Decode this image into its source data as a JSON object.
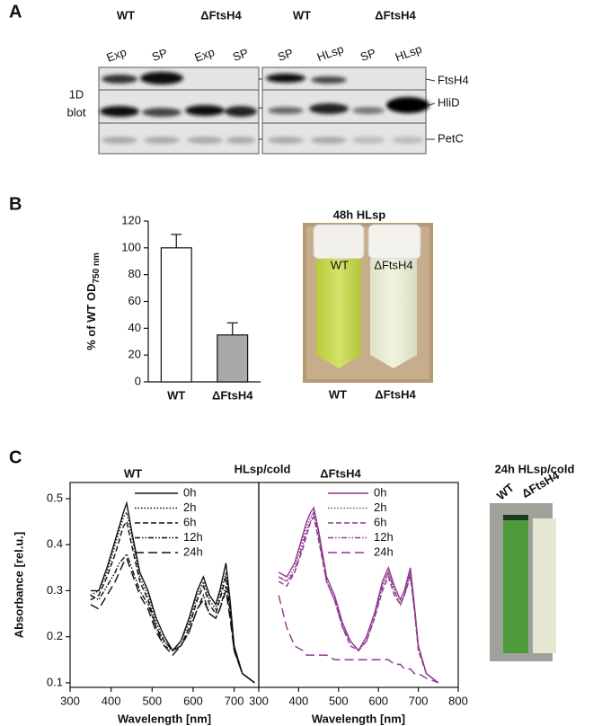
{
  "panel_labels": [
    "A",
    "B",
    "C"
  ],
  "blot": {
    "groups": [
      "WT",
      "ΔFtsH4",
      "WT",
      "ΔFtsH4"
    ],
    "lanes": [
      "Exp",
      "SP",
      "Exp",
      "SP",
      "SP",
      "HLsp",
      "SP",
      "HLsp"
    ],
    "side_label": [
      "1D",
      "blot"
    ],
    "proteins": [
      "FtsH4",
      "HliD",
      "PetC"
    ]
  },
  "photo_b": {
    "labels": [
      "WT",
      "ΔFtsH4"
    ]
  },
  "panel_c_title": "HLsp/cold",
  "photo_c": {
    "title": "24h HLsp/cold",
    "labels": [
      "WT",
      "ΔFtsH4"
    ]
  },
  "chart_data": [
    {
      "type": "bar",
      "title": "48h HLsp",
      "ylabel": "% of  WT OD",
      "ylabel_sub": "750 nm",
      "categories": [
        "WT",
        "ΔFtsH4"
      ],
      "values": [
        100,
        35
      ],
      "errors": [
        10,
        9
      ],
      "colors": [
        "#ffffff",
        "#a9a9a9"
      ],
      "ylim": [
        0,
        120
      ],
      "yticks": [
        0,
        20,
        40,
        60,
        80,
        100,
        120
      ]
    },
    {
      "type": "line",
      "title": "WT",
      "xlabel": "Wavelength [nm]",
      "ylabel": "Absorbance [rel.u.]",
      "x": [
        350,
        370,
        390,
        410,
        420,
        430,
        438,
        450,
        470,
        490,
        510,
        530,
        550,
        570,
        590,
        610,
        625,
        640,
        655,
        665,
        680,
        690,
        700,
        720,
        750
      ],
      "xlim": [
        300,
        760
      ],
      "xticks": [
        300,
        400,
        500,
        600,
        700
      ],
      "ylim": [
        0.09,
        0.535
      ],
      "yticks": [
        0.1,
        0.2,
        0.3,
        0.4,
        0.5
      ],
      "series": [
        {
          "name": "0h",
          "color": "#111111",
          "dash": "none",
          "values": [
            0.3,
            0.3,
            0.35,
            0.41,
            0.44,
            0.47,
            0.49,
            0.43,
            0.34,
            0.3,
            0.24,
            0.2,
            0.17,
            0.19,
            0.24,
            0.3,
            0.33,
            0.29,
            0.27,
            0.3,
            0.36,
            0.28,
            0.18,
            0.12,
            0.1
          ]
        },
        {
          "name": "2h",
          "color": "#111111",
          "dash": "1.5,2",
          "values": [
            0.29,
            0.3,
            0.34,
            0.4,
            0.43,
            0.46,
            0.47,
            0.42,
            0.33,
            0.29,
            0.23,
            0.19,
            0.17,
            0.19,
            0.23,
            0.29,
            0.32,
            0.28,
            0.26,
            0.29,
            0.34,
            0.27,
            0.18,
            0.12,
            0.1
          ]
        },
        {
          "name": "6h",
          "color": "#111111",
          "dash": "6,3",
          "values": [
            0.28,
            0.29,
            0.33,
            0.38,
            0.41,
            0.44,
            0.45,
            0.4,
            0.32,
            0.28,
            0.22,
            0.19,
            0.17,
            0.18,
            0.22,
            0.28,
            0.31,
            0.27,
            0.25,
            0.28,
            0.33,
            0.26,
            0.17,
            0.12,
            0.1
          ]
        },
        {
          "name": "12h",
          "color": "#111111",
          "dash": "6,2,1.5,2,1.5,2",
          "values": [
            0.29,
            0.28,
            0.31,
            0.34,
            0.36,
            0.37,
            0.38,
            0.35,
            0.3,
            0.27,
            0.22,
            0.18,
            0.17,
            0.18,
            0.21,
            0.26,
            0.29,
            0.25,
            0.24,
            0.26,
            0.31,
            0.25,
            0.17,
            0.12,
            0.1
          ]
        },
        {
          "name": "24h",
          "color": "#111111",
          "dash": "10,5",
          "values": [
            0.27,
            0.26,
            0.29,
            0.32,
            0.34,
            0.36,
            0.37,
            0.34,
            0.29,
            0.26,
            0.21,
            0.18,
            0.16,
            0.18,
            0.21,
            0.26,
            0.28,
            0.25,
            0.24,
            0.26,
            0.3,
            0.24,
            0.17,
            0.12,
            0.1
          ]
        }
      ]
    },
    {
      "type": "line",
      "title": "ΔFtsH4",
      "xlabel": "Wavelength [nm]",
      "x": [
        350,
        370,
        390,
        410,
        420,
        430,
        438,
        450,
        470,
        490,
        510,
        530,
        550,
        570,
        590,
        610,
        625,
        640,
        655,
        665,
        680,
        690,
        700,
        720,
        750
      ],
      "xlim": [
        300,
        800
      ],
      "xticks": [
        300,
        400,
        500,
        600,
        700,
        800
      ],
      "ylim": [
        0.09,
        0.535
      ],
      "series": [
        {
          "name": "0h",
          "color": "#8e3a8e",
          "dash": "none",
          "values": [
            0.34,
            0.33,
            0.36,
            0.42,
            0.45,
            0.47,
            0.48,
            0.43,
            0.33,
            0.29,
            0.23,
            0.19,
            0.17,
            0.2,
            0.25,
            0.32,
            0.35,
            0.31,
            0.28,
            0.3,
            0.35,
            0.27,
            0.18,
            0.12,
            0.1
          ]
        },
        {
          "name": "2h",
          "color": "#8e3a8e",
          "dash": "1.5,2",
          "values": [
            0.33,
            0.32,
            0.35,
            0.41,
            0.44,
            0.46,
            0.47,
            0.42,
            0.32,
            0.28,
            0.22,
            0.19,
            0.17,
            0.2,
            0.25,
            0.31,
            0.34,
            0.3,
            0.27,
            0.29,
            0.34,
            0.26,
            0.18,
            0.12,
            0.1
          ]
        },
        {
          "name": "6h",
          "color": "#8e3a8e",
          "dash": "6,3",
          "values": [
            0.32,
            0.31,
            0.34,
            0.39,
            0.42,
            0.45,
            0.46,
            0.41,
            0.32,
            0.28,
            0.22,
            0.18,
            0.17,
            0.19,
            0.24,
            0.3,
            0.33,
            0.29,
            0.27,
            0.29,
            0.33,
            0.26,
            0.17,
            0.12,
            0.1
          ]
        },
        {
          "name": "12h",
          "color": "#8e3a8e",
          "dash": "6,2,1.5,2,1.5,2",
          "values": [
            0.33,
            0.32,
            0.34,
            0.4,
            0.43,
            0.45,
            0.47,
            0.42,
            0.32,
            0.28,
            0.22,
            0.19,
            0.17,
            0.19,
            0.24,
            0.31,
            0.34,
            0.3,
            0.27,
            0.29,
            0.34,
            0.26,
            0.18,
            0.12,
            0.1
          ]
        },
        {
          "name": "24h",
          "color": "#8e3a8e",
          "dash": "10,5",
          "values": [
            0.29,
            0.22,
            0.18,
            0.17,
            0.16,
            0.16,
            0.16,
            0.16,
            0.16,
            0.15,
            0.15,
            0.15,
            0.15,
            0.15,
            0.15,
            0.15,
            0.15,
            0.14,
            0.14,
            0.13,
            0.13,
            0.12,
            0.12,
            0.11,
            0.1
          ]
        }
      ]
    }
  ]
}
